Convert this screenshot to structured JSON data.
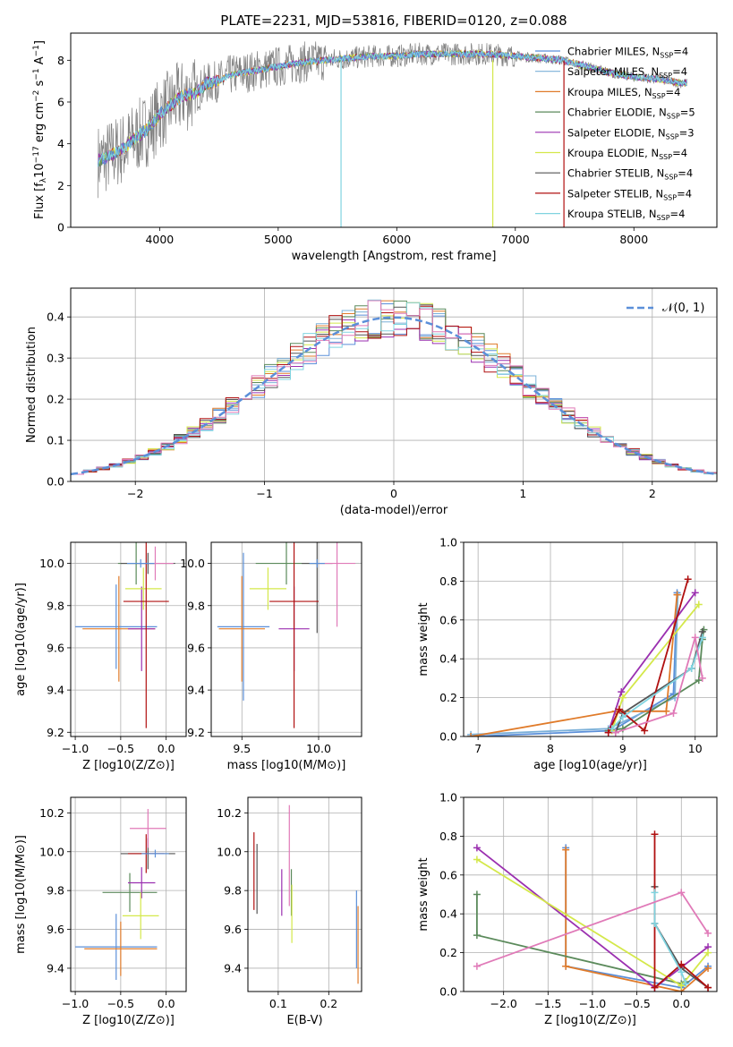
{
  "title": "PLATE=2231, MJD=53816, FIBERID=0120, z=0.088",
  "colors": {
    "chabrier_miles": "#5b8fd9",
    "salpeter_miles": "#7bb0d8",
    "kroupa_miles": "#e07b2a",
    "chabrier_elodie": "#5b8a5b",
    "salpeter_elodie": "#9b30b0",
    "kroupa_elodie": "#d4e84a",
    "chabrier_stelib": "#555555",
    "salpeter_stelib": "#b01010",
    "kroupa_stelib": "#80d4e0",
    "pink": "#e07ab8",
    "gaussian": "#5b8fd9",
    "grid": "#b0b0b0"
  },
  "chart_data": [
    {
      "id": "spectrum",
      "type": "line",
      "title": "PLATE=2231, MJD=53816, FIBERID=0120, z=0.088",
      "xlabel": "wavelength [Angstrom, rest frame]",
      "ylabel": "Flux [f",
      "ylabel_full": "Flux [fλ10⁻¹⁷ erg cm⁻² s⁻¹ A⁻¹]",
      "xlim": [
        3250,
        8700
      ],
      "ylim": [
        0,
        9.3
      ],
      "xticks": [
        4000,
        5000,
        6000,
        7000,
        8000
      ],
      "yticks": [
        0,
        2,
        4,
        6,
        8
      ],
      "grid": false,
      "legend_position": "right",
      "legend": [
        {
          "name": "Chabrier MILES, N",
          "n": "4",
          "color": "chabrier_miles"
        },
        {
          "name": "Salpeter MILES, N",
          "n": "4",
          "color": "salpeter_miles"
        },
        {
          "name": "Kroupa MILES, N",
          "n": "4",
          "color": "kroupa_miles"
        },
        {
          "name": "Chabrier ELODIE, N",
          "n": "5",
          "color": "chabrier_elodie"
        },
        {
          "name": "Salpeter ELODIE, N",
          "n": "3",
          "color": "salpeter_elodie"
        },
        {
          "name": "Kroupa ELODIE, N",
          "n": "4",
          "color": "kroupa_elodie"
        },
        {
          "name": "Chabrier STELIB, N",
          "n": "4",
          "color": "chabrier_stelib"
        },
        {
          "name": "Salpeter STELIB, N",
          "n": "4",
          "color": "salpeter_stelib"
        },
        {
          "name": "Kroupa STELIB, N",
          "n": "4",
          "color": "kroupa_stelib"
        }
      ],
      "legend_sub": "SSP",
      "continuum": {
        "x": [
          3500,
          3600,
          3700,
          3800,
          3900,
          4000,
          4100,
          4200,
          4300,
          4400,
          4500,
          4600,
          4800,
          5000,
          5200,
          5400,
          5600,
          5800,
          6000,
          6200,
          6400,
          6600,
          6800,
          7000,
          7200,
          7400,
          7600,
          7800,
          8000,
          8200,
          8400
        ],
        "y": [
          3.2,
          3.5,
          3.8,
          4.3,
          4.7,
          5.4,
          5.9,
          6.3,
          6.4,
          6.9,
          7.0,
          7.3,
          7.5,
          7.7,
          7.9,
          8.0,
          8.1,
          8.2,
          8.2,
          8.3,
          8.3,
          8.3,
          8.3,
          8.2,
          8.1,
          8.0,
          7.7,
          7.4,
          7.2,
          7.1,
          6.9
        ]
      }
    },
    {
      "id": "residuals",
      "type": "step",
      "xlabel": "(data-model)/error",
      "ylabel": "Normed distribution",
      "xlim": [
        -2.5,
        2.5
      ],
      "ylim": [
        0,
        0.47
      ],
      "xticks": [
        -2,
        -1,
        0,
        1,
        2
      ],
      "yticks": [
        0.0,
        0.1,
        0.2,
        0.3,
        0.4
      ],
      "grid": true,
      "legend_label": "𝒩(0, 1)",
      "legend_position": "top-right",
      "bin_width": 0.1
    },
    {
      "id": "age_vs_Z",
      "type": "errorbar",
      "xlabel": "Z [log10(Z/Z⊙)]",
      "ylabel": "age  [log10(age/yr)]",
      "xlim": [
        -1.05,
        0.22
      ],
      "ylim": [
        9.18,
        10.1
      ],
      "xticks": [
        -1.0,
        -0.5,
        0.0
      ],
      "yticks": [
        9.2,
        9.4,
        9.6,
        9.8,
        10.0
      ],
      "grid": true,
      "points": [
        {
          "c": "chabrier_miles",
          "x": -0.55,
          "xe": 0.45,
          "y": 9.7,
          "ye": 0.2
        },
        {
          "c": "kroupa_miles",
          "x": -0.52,
          "xe": 0.4,
          "y": 9.69,
          "ye": 0.25
        },
        {
          "c": "chabrier_elodie",
          "x": -0.33,
          "xe": 0.2,
          "y": 10.0,
          "ye": 0.1
        },
        {
          "c": "salpeter_elodie",
          "x": -0.27,
          "xe": 0.15,
          "y": 9.69,
          "ye": 0.2
        },
        {
          "c": "kroupa_elodie",
          "x": -0.25,
          "xe": 0.2,
          "y": 9.88,
          "ye": 0.1
        },
        {
          "c": "chabrier_stelib",
          "x": -0.2,
          "xe": 0.3,
          "y": 10.0,
          "ye": 0.05
        },
        {
          "c": "salpeter_stelib",
          "x": -0.22,
          "xe": 0.25,
          "y": 9.82,
          "ye": 0.6
        },
        {
          "c": "pink",
          "x": -0.12,
          "xe": 0.2,
          "y": 10.0,
          "ye": 0.08
        },
        {
          "c": "chabrier_miles",
          "x": -0.28,
          "xe": 0.15,
          "y": 10.0,
          "ye": 0.02
        }
      ]
    },
    {
      "id": "age_vs_mass",
      "type": "errorbar",
      "xlabel": "mass [log10(M/M⊙)]",
      "ylabel": "",
      "xlim": [
        9.3,
        10.28
      ],
      "ylim": [
        9.18,
        10.1
      ],
      "xticks": [
        9.5,
        10.0
      ],
      "yticks": [
        9.2,
        9.4,
        9.6,
        9.8,
        10.0
      ],
      "grid": true,
      "points": [
        {
          "c": "chabrier_miles",
          "x": 9.51,
          "xe": 0.17,
          "y": 9.7,
          "ye": 0.35
        },
        {
          "c": "kroupa_miles",
          "x": 9.5,
          "xe": 0.15,
          "y": 9.69,
          "ye": 0.25
        },
        {
          "c": "chabrier_elodie",
          "x": 9.79,
          "xe": 0.2,
          "y": 10.0,
          "ye": 0.1
        },
        {
          "c": "salpeter_elodie",
          "x": 9.84,
          "xe": 0.1,
          "y": 9.69,
          "ye": 0.2
        },
        {
          "c": "kroupa_elodie",
          "x": 9.67,
          "xe": 0.12,
          "y": 9.88,
          "ye": 0.1
        },
        {
          "c": "chabrier_stelib",
          "x": 9.99,
          "xe": 0.1,
          "y": 10.0,
          "ye": 0.33
        },
        {
          "c": "salpeter_stelib",
          "x": 9.84,
          "xe": 0.16,
          "y": 9.82,
          "ye": 0.6
        },
        {
          "c": "pink",
          "x": 10.12,
          "xe": 0.12,
          "y": 10.0,
          "ye": 0.3
        },
        {
          "c": "chabrier_miles",
          "x": 9.99,
          "xe": 0.05,
          "y": 10.0,
          "ye": 0.02
        }
      ]
    },
    {
      "id": "massweight_vs_age",
      "type": "line",
      "xlabel": "age  [log10(age/yr)]",
      "ylabel": "mass weight",
      "xlim": [
        6.8,
        10.3
      ],
      "ylim": [
        0,
        1.0
      ],
      "xticks": [
        7,
        8,
        9,
        10
      ],
      "yticks": [
        0.0,
        0.2,
        0.4,
        0.6,
        0.8,
        1.0
      ],
      "grid": true,
      "series": [
        {
          "c": "chabrier_miles",
          "x": [
            6.9,
            8.85,
            9.7,
            9.75
          ],
          "y": [
            0.0,
            0.03,
            0.22,
            0.74
          ]
        },
        {
          "c": "salpeter_miles",
          "x": [
            6.9,
            8.8,
            9.72,
            9.76
          ],
          "y": [
            0.01,
            0.04,
            0.2,
            0.73
          ]
        },
        {
          "c": "kroupa_miles",
          "x": [
            6.9,
            8.9,
            9.6,
            9.75
          ],
          "y": [
            0.0,
            0.13,
            0.13,
            0.73
          ]
        },
        {
          "c": "chabrier_elodie",
          "x": [
            8.8,
            9.0,
            10.05,
            10.1,
            10.12
          ],
          "y": [
            0.03,
            0.04,
            0.29,
            0.5,
            0.55
          ]
        },
        {
          "c": "salpeter_elodie",
          "x": [
            8.8,
            8.98,
            10.0
          ],
          "y": [
            0.02,
            0.23,
            0.74
          ]
        },
        {
          "c": "kroupa_elodie",
          "x": [
            8.85,
            9.0,
            10.05
          ],
          "y": [
            0.03,
            0.2,
            0.68
          ]
        },
        {
          "c": "chabrier_stelib",
          "x": [
            8.9,
            9.0,
            9.95,
            10.1
          ],
          "y": [
            0.02,
            0.12,
            0.35,
            0.54
          ]
        },
        {
          "c": "salpeter_stelib",
          "x": [
            8.8,
            8.95,
            9.3,
            9.9
          ],
          "y": [
            0.02,
            0.14,
            0.03,
            0.81
          ]
        },
        {
          "c": "kroupa_stelib",
          "x": [
            8.85,
            9.0,
            9.95,
            10.1
          ],
          "y": [
            0.04,
            0.1,
            0.35,
            0.51
          ]
        },
        {
          "c": "pink",
          "x": [
            8.9,
            9.7,
            10.0,
            10.1
          ],
          "y": [
            0.02,
            0.12,
            0.51,
            0.3
          ]
        }
      ]
    },
    {
      "id": "mass_vs_Z",
      "type": "errorbar",
      "xlabel": "Z [log10(Z/Z⊙)]",
      "ylabel": "mass [log10(M/M⊙)]",
      "xlim": [
        -1.05,
        0.22
      ],
      "ylim": [
        9.28,
        10.28
      ],
      "xticks": [
        -1.0,
        -0.5,
        0.0
      ],
      "yticks": [
        9.4,
        9.6,
        9.8,
        10.0,
        10.2
      ],
      "grid": true,
      "points": [
        {
          "c": "chabrier_miles",
          "x": -0.55,
          "xe": 0.45,
          "y": 9.51,
          "ye": 0.17
        },
        {
          "c": "kroupa_miles",
          "x": -0.5,
          "xe": 0.4,
          "y": 9.5,
          "ye": 0.14
        },
        {
          "c": "chabrier_elodie",
          "x": -0.4,
          "xe": 0.3,
          "y": 9.79,
          "ye": 0.1
        },
        {
          "c": "salpeter_elodie",
          "x": -0.27,
          "xe": 0.15,
          "y": 9.84,
          "ye": 0.08
        },
        {
          "c": "kroupa_elodie",
          "x": -0.28,
          "xe": 0.2,
          "y": 9.67,
          "ye": 0.12
        },
        {
          "c": "chabrier_stelib",
          "x": -0.2,
          "xe": 0.3,
          "y": 9.99,
          "ye": 0.08
        },
        {
          "c": "salpeter_stelib",
          "x": -0.22,
          "xe": 0.2,
          "y": 9.99,
          "ye": 0.1
        },
        {
          "c": "pink",
          "x": -0.2,
          "xe": 0.2,
          "y": 10.12,
          "ye": 0.1
        },
        {
          "c": "chabrier_miles",
          "x": -0.12,
          "xe": 0.15,
          "y": 9.99,
          "ye": 0.02
        }
      ]
    },
    {
      "id": "mass_vs_ebv",
      "type": "errorbar",
      "xlabel": "E(B-V)",
      "ylabel": "",
      "xlim": [
        0.04,
        0.265
      ],
      "ylim": [
        9.28,
        10.28
      ],
      "xticks": [
        0.1,
        0.2
      ],
      "yticks": [
        9.4,
        9.6,
        9.8,
        10.0,
        10.2
      ],
      "grid": true,
      "points": [
        {
          "c": "salpeter_stelib",
          "x": 0.052,
          "xe": 0.0,
          "y": 9.9,
          "ye": 0.2
        },
        {
          "c": "chabrier_stelib",
          "x": 0.058,
          "xe": 0.0,
          "y": 9.86,
          "ye": 0.18
        },
        {
          "c": "salpeter_elodie",
          "x": 0.107,
          "xe": 0.0,
          "y": 9.79,
          "ye": 0.12
        },
        {
          "c": "pink",
          "x": 0.122,
          "xe": 0.0,
          "y": 9.98,
          "ye": 0.26
        },
        {
          "c": "chabrier_elodie",
          "x": 0.126,
          "xe": 0.0,
          "y": 9.79,
          "ye": 0.12
        },
        {
          "c": "kroupa_elodie",
          "x": 0.127,
          "xe": 0.0,
          "y": 9.68,
          "ye": 0.15
        },
        {
          "c": "chabrier_miles",
          "x": 0.255,
          "xe": 0.0,
          "y": 9.6,
          "ye": 0.2
        },
        {
          "c": "kroupa_miles",
          "x": 0.258,
          "xe": 0.0,
          "y": 9.52,
          "ye": 0.2
        }
      ]
    },
    {
      "id": "massweight_vs_Z",
      "type": "line",
      "xlabel": "Z [log10(Z/Z⊙)]",
      "ylabel": "mass weight",
      "xlim": [
        -2.45,
        0.4
      ],
      "ylim": [
        0,
        1.0
      ],
      "xticks": [
        -2.0,
        -1.5,
        -1.0,
        -0.5,
        0.0
      ],
      "yticks": [
        0.0,
        0.2,
        0.4,
        0.6,
        0.8,
        1.0
      ],
      "grid": true,
      "series": [
        {
          "c": "chabrier_miles",
          "x": [
            -1.3,
            -1.3,
            0.0,
            0.3
          ],
          "y": [
            0.74,
            0.13,
            0.02,
            0.13
          ]
        },
        {
          "c": "kroupa_miles",
          "x": [
            -1.3,
            -1.3,
            0.0,
            0.3
          ],
          "y": [
            0.73,
            0.13,
            0.0,
            0.12
          ]
        },
        {
          "c": "chabrier_elodie",
          "x": [
            -2.3,
            -2.3,
            -0.0,
            0.05
          ],
          "y": [
            0.5,
            0.29,
            0.04,
            0.05
          ]
        },
        {
          "c": "salpeter_elodie",
          "x": [
            -2.3,
            -0.3,
            0.3
          ],
          "y": [
            0.74,
            0.02,
            0.23
          ]
        },
        {
          "c": "kroupa_elodie",
          "x": [
            -2.3,
            0.0,
            0.3
          ],
          "y": [
            0.68,
            0.03,
            0.2
          ]
        },
        {
          "c": "chabrier_stelib",
          "x": [
            -0.3,
            -0.3,
            0.0,
            0.3
          ],
          "y": [
            0.54,
            0.35,
            0.12,
            0.02
          ]
        },
        {
          "c": "salpeter_stelib",
          "x": [
            -0.3,
            -0.3,
            0.0,
            0.3
          ],
          "y": [
            0.81,
            0.02,
            0.14,
            0.02
          ]
        },
        {
          "c": "kroupa_stelib",
          "x": [
            -0.3,
            -0.3,
            0.0,
            0.05
          ],
          "y": [
            0.51,
            0.35,
            0.1,
            0.04
          ]
        },
        {
          "c": "pink",
          "x": [
            -2.3,
            0.0,
            0.3
          ],
          "y": [
            0.13,
            0.51,
            0.3
          ]
        }
      ]
    }
  ]
}
